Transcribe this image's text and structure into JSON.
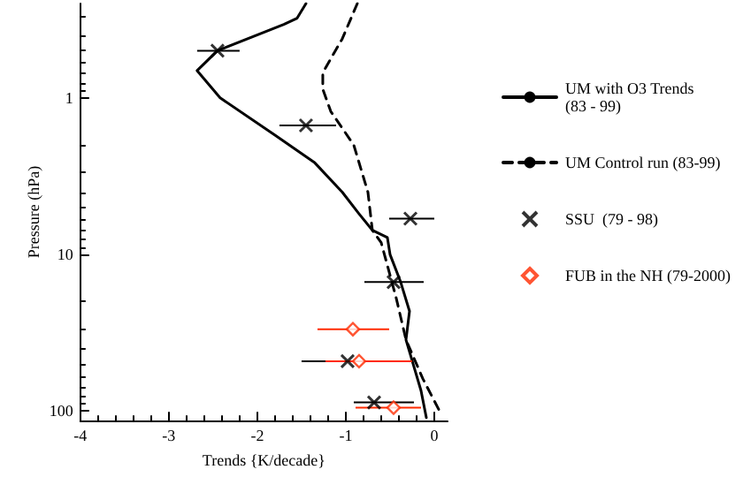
{
  "chart_data": {
    "type": "line",
    "xlabel": "Trends {K/decade}",
    "ylabel": "Pressure (hPa)",
    "log": "y",
    "xlim": [
      -4,
      0.15
    ],
    "xticks": [
      -4,
      -3,
      -2,
      -1,
      0
    ],
    "ylim": [
      115,
      0.25
    ],
    "yticks": [
      1,
      10,
      100
    ],
    "grid": false,
    "legend": "right",
    "series": [
      {
        "name": "UM with O3 Trends\n(83 - 99)",
        "color": "#000000",
        "line_style": "solid",
        "marker": "none",
        "x": [
          -1.45,
          -1.55,
          -1.7,
          -2.45,
          -2.68,
          -2.42,
          -1.8,
          -1.35,
          -1.04,
          -0.85,
          -0.7,
          -0.53,
          -0.5,
          -0.38,
          -0.28,
          -0.32,
          -0.23,
          -0.15,
          -0.09
        ],
        "values": [
          0.25,
          0.31,
          0.34,
          0.5,
          0.67,
          1.0,
          1.73,
          2.6,
          4.0,
          5.5,
          7.0,
          7.8,
          10,
          15,
          23,
          35,
          52,
          74,
          110
        ]
      },
      {
        "name": "UM Control run (83-99)",
        "color": "#000000",
        "line_style": "dashed",
        "marker": "none",
        "x": [
          -0.87,
          -1.04,
          -1.26,
          -1.26,
          -1.17,
          -0.91,
          -0.75,
          -0.7,
          -0.6,
          -0.43,
          -0.32,
          -0.13,
          0.06
        ],
        "values": [
          0.25,
          0.42,
          0.69,
          0.88,
          1.22,
          2.0,
          4.0,
          7,
          8.4,
          19,
          35,
          62,
          100
        ]
      },
      {
        "name": "SSU  (79 - 98)",
        "type": "scatter",
        "color": "#000000",
        "marker": "cross",
        "x": [
          -2.45,
          -1.45,
          -0.27,
          -0.46,
          -0.98,
          -0.68
        ],
        "values": [
          0.5,
          1.5,
          5.9,
          15,
          48,
          88
        ],
        "xerrors": [
          [
            -2.68,
            -2.2
          ],
          [
            -1.75,
            -1.11
          ],
          [
            -0.51,
            0
          ],
          [
            -0.79,
            -0.12
          ],
          [
            -1.5,
            -0.43
          ],
          [
            -0.91,
            -0.23
          ]
        ]
      },
      {
        "name": "FUB in the NH (79-2000)",
        "type": "scatter",
        "color": "#ff2a00",
        "marker": "diamond",
        "x": [
          -0.92,
          -0.85,
          -0.46
        ],
        "values": [
          30,
          48,
          95
        ],
        "xerrors": [
          [
            -1.32,
            -0.51
          ],
          [
            -1.23,
            -0.25
          ],
          [
            -0.89,
            -0.15
          ]
        ]
      }
    ]
  }
}
